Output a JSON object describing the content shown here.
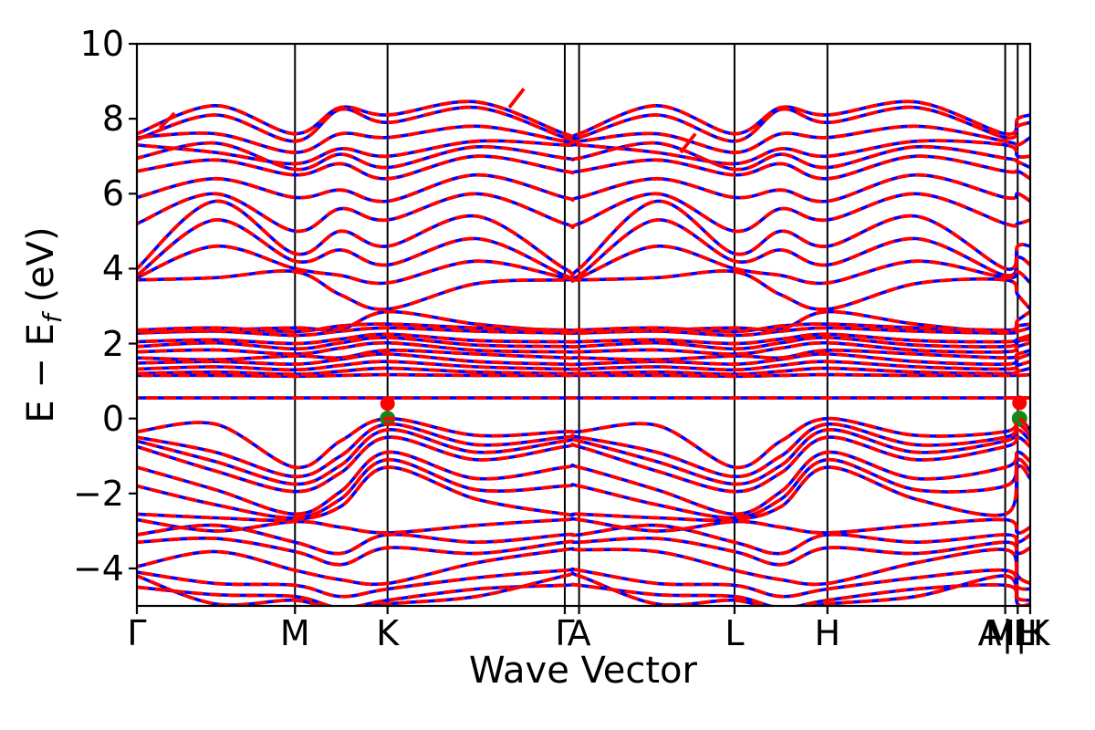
{
  "figure": {
    "xlabel": "Wave Vector",
    "ylabel_pre": "E − E",
    "ylabel_sub": "f",
    "ylabel_post": " (eV)"
  },
  "chart_data": {
    "type": "line",
    "title": "",
    "xlabel": "Wave Vector",
    "ylabel": "E − E_f (eV)",
    "ylim": [
      -5,
      10
    ],
    "yticks": [
      -4,
      -2,
      0,
      2,
      4,
      6,
      8,
      10
    ],
    "ytick_labels": [
      "−4",
      "−2",
      "0",
      "2",
      "4",
      "6",
      "8",
      "10"
    ],
    "grid": false,
    "legend": "none",
    "kpath_ticks": [
      {
        "label": "Γ",
        "x": 0.0
      },
      {
        "label": "M",
        "x": 0.177
      },
      {
        "label": "K",
        "x": 0.2806
      },
      {
        "label": "Γ",
        "x": 0.479
      },
      {
        "label": "A",
        "x": 0.495
      },
      {
        "label": "L",
        "x": 0.669
      },
      {
        "label": "H",
        "x": 0.773
      },
      {
        "label": "A|L",
        "x": 0.972
      },
      {
        "label": "M|K",
        "x": 0.986
      },
      {
        "label": "H",
        "x": 1.0
      }
    ],
    "style": {
      "solid_color": "#0000ff",
      "dashed_color": "#ff0000",
      "frame_color": "#000000",
      "kline_color": "#000000"
    },
    "band_edges": {
      "vbm": {
        "color": "#128912",
        "points": [
          {
            "x": 0.2806,
            "e": 0.0
          },
          {
            "x": 0.988,
            "e": 0.0
          }
        ]
      },
      "cbm": {
        "color": "#ff0000",
        "points": [
          {
            "x": 0.2806,
            "e": 0.4
          },
          {
            "x": 0.988,
            "e": 0.42
          }
        ]
      }
    },
    "extra_red_segments": [
      {
        "x": 0.425,
        "e1": 8.3,
        "e2": 8.8
      },
      {
        "x": 0.617,
        "e1": 7.1,
        "e2": 7.6
      },
      {
        "x": 0.034,
        "e1": 7.75,
        "e2": 8.15
      }
    ],
    "stations": [
      0,
      0.088,
      0.177,
      0.228,
      0.2806,
      0.38,
      0.479,
      0.495,
      0.582,
      0.669,
      0.721,
      0.773,
      0.872,
      0.972,
      0.986,
      1.0
    ],
    "bands": [
      [
        -0.35,
        -0.15,
        -1.3,
        -0.6,
        0.0,
        -0.45,
        -0.35,
        -0.35,
        -0.18,
        -1.3,
        -0.6,
        0.0,
        -0.45,
        -0.35,
        0.0,
        -0.3
      ],
      [
        -0.5,
        -0.9,
        -1.55,
        -1.0,
        -0.15,
        -0.7,
        -0.5,
        -0.5,
        -0.9,
        -1.55,
        -1.0,
        -0.15,
        -0.7,
        -0.5,
        -0.15,
        -0.45
      ],
      [
        -0.6,
        -1.15,
        -1.75,
        -1.25,
        -0.3,
        -0.9,
        -0.6,
        -0.6,
        -1.15,
        -1.75,
        -1.25,
        -0.3,
        -0.9,
        -0.6,
        -0.3,
        -0.6
      ],
      [
        -0.75,
        -1.4,
        -1.95,
        -1.45,
        -0.5,
        -1.1,
        -0.75,
        -0.75,
        -1.4,
        -1.95,
        -1.45,
        -0.5,
        -1.1,
        -0.75,
        -0.5,
        -0.75
      ],
      [
        -1.3,
        -1.9,
        -2.55,
        -1.95,
        -0.9,
        -1.6,
        -1.3,
        -1.3,
        -1.9,
        -2.55,
        -1.95,
        -0.9,
        -1.6,
        -1.3,
        -0.9,
        -1.15
      ],
      [
        -1.8,
        -2.3,
        -2.65,
        -2.15,
        -1.1,
        -1.9,
        -1.8,
        -1.8,
        -2.3,
        -2.65,
        -2.15,
        -1.1,
        -1.9,
        -1.8,
        -1.1,
        -1.4
      ],
      [
        -2.55,
        -2.65,
        -2.7,
        -2.35,
        -1.3,
        -2.15,
        -2.55,
        -2.55,
        -2.65,
        -2.7,
        -2.35,
        -1.3,
        -2.15,
        -2.55,
        -1.3,
        -1.6
      ],
      [
        -2.7,
        -3.0,
        -2.75,
        -2.9,
        -3.05,
        -2.85,
        -2.7,
        -2.7,
        -3.0,
        -2.75,
        -2.9,
        -3.05,
        -2.85,
        -2.7,
        -3.05,
        -2.9
      ],
      [
        -3.1,
        -2.85,
        -3.3,
        -3.6,
        -3.1,
        -3.3,
        -3.1,
        -3.1,
        -2.85,
        -3.3,
        -3.6,
        -3.1,
        -3.3,
        -3.1,
        -3.3,
        -3.1
      ],
      [
        -3.3,
        -3.2,
        -3.55,
        -3.9,
        -3.45,
        -3.6,
        -3.3,
        -3.3,
        -3.2,
        -3.55,
        -3.9,
        -3.45,
        -3.6,
        -3.3,
        -3.6,
        -3.45
      ],
      [
        -3.95,
        -3.55,
        -4.05,
        -4.3,
        -4.4,
        -3.85,
        -3.5,
        -3.5,
        -3.55,
        -4.05,
        -4.3,
        -4.4,
        -3.85,
        -3.5,
        -4.2,
        -4.4
      ],
      [
        -4.1,
        -4.4,
        -4.45,
        -4.75,
        -4.55,
        -4.25,
        -4.05,
        -4.05,
        -4.4,
        -4.45,
        -4.75,
        -4.55,
        -4.25,
        -4.05,
        -4.5,
        -4.55
      ],
      [
        -4.5,
        -4.7,
        -4.75,
        -5.05,
        -4.85,
        -4.55,
        -4.45,
        -4.45,
        -4.7,
        -4.75,
        -5.05,
        -4.85,
        -4.55,
        -4.45,
        -4.8,
        -4.85
      ],
      [
        -4.2,
        -4.95,
        -4.85,
        -5.15,
        -4.95,
        -4.75,
        -4.2,
        -4.2,
        -4.95,
        -4.85,
        -5.15,
        -4.95,
        -4.75,
        -4.2,
        -4.95,
        -4.95
      ],
      [
        0.55,
        0.55,
        0.55,
        0.55,
        0.55,
        0.55,
        0.55,
        0.55,
        0.55,
        0.55,
        0.55,
        0.55,
        0.55,
        0.55,
        0.55,
        0.55
      ],
      [
        1.15,
        1.15,
        1.13,
        1.15,
        1.17,
        1.15,
        1.15,
        1.15,
        1.15,
        1.13,
        1.15,
        1.17,
        1.15,
        1.15,
        1.15,
        1.17
      ],
      [
        1.2,
        1.24,
        1.18,
        1.26,
        1.34,
        1.24,
        1.2,
        1.2,
        1.24,
        1.18,
        1.26,
        1.34,
        1.24,
        1.2,
        1.26,
        1.34
      ],
      [
        1.32,
        1.38,
        1.3,
        1.42,
        1.52,
        1.38,
        1.32,
        1.32,
        1.38,
        1.3,
        1.42,
        1.52,
        1.38,
        1.32,
        1.42,
        1.52
      ],
      [
        1.48,
        1.52,
        1.45,
        1.58,
        1.72,
        1.52,
        1.45,
        1.45,
        1.52,
        1.45,
        1.58,
        1.72,
        1.52,
        1.45,
        1.6,
        1.72
      ],
      [
        1.62,
        1.57,
        1.67,
        1.62,
        1.82,
        1.72,
        1.62,
        1.62,
        1.57,
        1.67,
        1.62,
        1.82,
        1.72,
        1.62,
        1.72,
        1.82
      ],
      [
        1.78,
        1.83,
        1.72,
        1.88,
        2.02,
        1.82,
        1.78,
        1.78,
        1.83,
        1.72,
        1.88,
        2.02,
        1.82,
        1.78,
        1.92,
        2.02
      ],
      [
        1.92,
        2.02,
        1.86,
        2.02,
        2.16,
        1.96,
        1.92,
        1.92,
        2.02,
        1.86,
        2.02,
        2.16,
        1.96,
        1.92,
        2.06,
        2.12
      ],
      [
        2.05,
        2.1,
        2.0,
        2.12,
        2.25,
        2.08,
        2.05,
        2.05,
        2.1,
        2.0,
        2.12,
        2.25,
        2.08,
        2.05,
        2.12,
        2.22
      ],
      [
        2.28,
        2.33,
        2.22,
        2.33,
        2.42,
        2.33,
        2.28,
        2.28,
        2.33,
        2.22,
        2.33,
        2.42,
        2.33,
        2.28,
        2.33,
        2.42
      ],
      [
        2.36,
        2.42,
        2.32,
        2.47,
        2.52,
        2.42,
        2.36,
        2.36,
        2.42,
        2.32,
        2.47,
        2.52,
        2.42,
        2.36,
        2.47,
        2.52
      ],
      [
        2.32,
        2.36,
        2.42,
        2.38,
        2.85,
        2.52,
        2.32,
        2.32,
        2.36,
        2.42,
        2.38,
        2.85,
        2.52,
        2.32,
        2.62,
        2.85
      ],
      [
        3.7,
        3.76,
        3.92,
        3.3,
        2.92,
        3.6,
        3.7,
        3.7,
        3.76,
        3.92,
        3.3,
        2.92,
        3.6,
        3.7,
        3.3,
        2.92
      ],
      [
        3.76,
        4.6,
        4.0,
        3.82,
        3.62,
        4.2,
        3.76,
        3.76,
        4.6,
        4.0,
        3.82,
        3.62,
        4.2,
        3.76,
        3.92,
        3.62
      ],
      [
        3.82,
        5.3,
        4.2,
        4.5,
        4.1,
        4.8,
        3.82,
        3.82,
        5.3,
        4.2,
        4.5,
        4.1,
        4.8,
        3.82,
        4.3,
        4.1
      ],
      [
        4.0,
        5.8,
        4.4,
        5.0,
        4.6,
        5.4,
        4.0,
        4.0,
        5.8,
        4.4,
        5.0,
        4.6,
        5.4,
        4.0,
        4.6,
        4.6
      ],
      [
        5.2,
        6.0,
        5.0,
        5.6,
        5.3,
        6.0,
        5.2,
        5.2,
        6.0,
        5.0,
        5.6,
        5.3,
        6.0,
        5.2,
        5.2,
        5.3
      ],
      [
        5.9,
        6.4,
        5.9,
        6.1,
        5.8,
        6.5,
        5.9,
        5.9,
        6.4,
        5.9,
        6.1,
        5.8,
        6.5,
        5.9,
        6.0,
        5.8
      ],
      [
        6.6,
        6.9,
        6.5,
        6.8,
        6.4,
        7.0,
        6.6,
        6.6,
        6.9,
        6.5,
        6.8,
        6.4,
        7.0,
        6.6,
        6.6,
        6.4
      ],
      [
        6.95,
        7.35,
        6.65,
        7.05,
        6.7,
        7.25,
        6.95,
        6.95,
        7.35,
        6.65,
        7.05,
        6.7,
        7.25,
        6.95,
        6.85,
        6.7
      ],
      [
        7.3,
        7.1,
        6.8,
        7.2,
        7.0,
        7.4,
        7.3,
        7.3,
        7.1,
        6.8,
        7.2,
        7.0,
        7.4,
        7.3,
        7.0,
        7.0
      ],
      [
        7.5,
        7.6,
        7.1,
        7.6,
        7.5,
        7.8,
        7.4,
        7.4,
        7.6,
        7.1,
        7.6,
        7.5,
        7.8,
        7.4,
        7.3,
        7.5
      ],
      [
        7.45,
        8.1,
        7.4,
        8.25,
        7.9,
        8.3,
        7.5,
        7.5,
        8.1,
        7.4,
        8.25,
        7.9,
        8.3,
        7.5,
        7.8,
        7.9
      ],
      [
        7.6,
        8.35,
        7.6,
        8.3,
        8.1,
        8.45,
        7.6,
        7.6,
        8.35,
        7.6,
        8.3,
        8.1,
        8.45,
        7.6,
        8.0,
        8.1
      ]
    ]
  }
}
